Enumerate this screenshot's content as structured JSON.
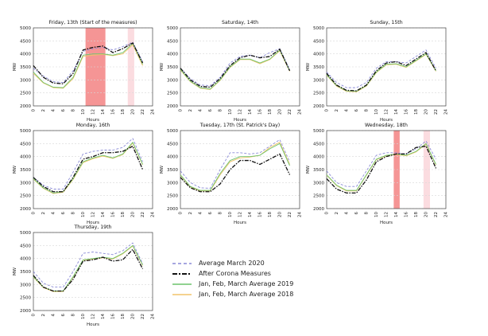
{
  "figure": {
    "ylabel": "MW",
    "xlabel": "Hours",
    "colors": {
      "avg2020": "#8a8ad6",
      "after": "#111111",
      "avg2019": "#6cc36c",
      "avg2018": "#f2c46a",
      "band_strong": "#f37b7b",
      "band_light": "#f9d0d6"
    },
    "legend": [
      {
        "key": "avg2020",
        "label": "Average March 2020",
        "style": "dashed"
      },
      {
        "key": "after",
        "label": "After Corona Measures",
        "style": "dashdot"
      },
      {
        "key": "avg2019",
        "label": "Jan, Feb, March Average 2019",
        "style": "solid"
      },
      {
        "key": "avg2018",
        "label": "Jan, Feb, March Average 2018",
        "style": "solid"
      }
    ]
  },
  "chart_data": [
    {
      "type": "line",
      "title": "Friday, 13th (Start of the measures)",
      "x": [
        0,
        2,
        4,
        6,
        8,
        10,
        12,
        14,
        16,
        18,
        20,
        22
      ],
      "ylim": [
        2000,
        5000
      ],
      "xticks": [
        "0",
        "2",
        "4",
        "6",
        "8",
        "10",
        "12",
        "14",
        "16",
        "18",
        "20",
        "22",
        "24"
      ],
      "yticks": [
        "2000",
        "2500",
        "3000",
        "3500",
        "4000",
        "4500",
        "5000"
      ],
      "bands": [
        {
          "x0": 10.5,
          "x1": 14.5,
          "kind": "strong"
        },
        {
          "x0": 19,
          "x1": 20.3,
          "kind": "light"
        }
      ],
      "series": [
        {
          "key": "avg2020",
          "values": [
            3450,
            3150,
            2930,
            2900,
            3350,
            4100,
            4200,
            4250,
            4150,
            4280,
            4450,
            3700
          ]
        },
        {
          "key": "after",
          "values": [
            3550,
            3100,
            2880,
            2850,
            3250,
            4150,
            4250,
            4300,
            4050,
            4200,
            4420,
            3650
          ]
        },
        {
          "key": "avg2019",
          "values": [
            3300,
            2900,
            2720,
            2700,
            3100,
            3950,
            4000,
            4000,
            3950,
            4050,
            4400,
            3600
          ]
        },
        {
          "key": "avg2018",
          "values": [
            3250,
            2880,
            2700,
            2680,
            3050,
            3900,
            3950,
            3980,
            3930,
            4000,
            4350,
            3550
          ]
        }
      ]
    },
    {
      "type": "line",
      "title": "Saturday, 14th",
      "x": [
        0,
        2,
        4,
        6,
        8,
        10,
        12,
        14,
        16,
        18,
        20,
        22
      ],
      "ylim": [
        2000,
        5000
      ],
      "xticks": [
        "0",
        "2",
        "4",
        "6",
        "8",
        "10",
        "12",
        "14",
        "16",
        "18",
        "20",
        "22",
        "24"
      ],
      "yticks": [
        "2000",
        "2500",
        "3000",
        "3500",
        "4000",
        "4500",
        "5000"
      ],
      "bands": [],
      "series": [
        {
          "key": "avg2020",
          "values": [
            3450,
            3050,
            2800,
            2780,
            3100,
            3650,
            3900,
            3950,
            3850,
            4050,
            4200,
            3400
          ]
        },
        {
          "key": "after",
          "values": [
            3450,
            3000,
            2750,
            2720,
            3050,
            3550,
            3850,
            3950,
            3850,
            3900,
            4180,
            3350
          ]
        },
        {
          "key": "avg2019",
          "values": [
            3400,
            2950,
            2700,
            2650,
            3000,
            3500,
            3800,
            3800,
            3650,
            3800,
            4150,
            3350
          ]
        },
        {
          "key": "avg2018",
          "values": [
            3380,
            2930,
            2680,
            2630,
            2980,
            3480,
            3780,
            3780,
            3620,
            3780,
            4120,
            3330
          ]
        }
      ]
    },
    {
      "type": "line",
      "title": "Sunday, 15th",
      "x": [
        0,
        2,
        4,
        6,
        8,
        10,
        12,
        14,
        16,
        18,
        20,
        22
      ],
      "ylim": [
        2000,
        5000
      ],
      "xticks": [
        "0",
        "2",
        "4",
        "6",
        "8",
        "10",
        "12",
        "14",
        "16",
        "18",
        "20",
        "22",
        "24"
      ],
      "yticks": [
        "2000",
        "2500",
        "3000",
        "3500",
        "4000",
        "4500",
        "5000"
      ],
      "bands": [],
      "series": [
        {
          "key": "avg2020",
          "values": [
            3300,
            2900,
            2700,
            2700,
            2900,
            3450,
            3700,
            3700,
            3650,
            3900,
            4150,
            3450
          ]
        },
        {
          "key": "after",
          "values": [
            3250,
            2800,
            2600,
            2580,
            2800,
            3350,
            3650,
            3700,
            3550,
            3800,
            4050,
            3350
          ]
        },
        {
          "key": "avg2019",
          "values": [
            3200,
            2780,
            2580,
            2560,
            2780,
            3300,
            3600,
            3620,
            3500,
            3750,
            4000,
            3350
          ]
        },
        {
          "key": "avg2018",
          "values": [
            3180,
            2760,
            2560,
            2540,
            2760,
            3280,
            3580,
            3600,
            3480,
            3730,
            3980,
            3330
          ]
        }
      ]
    },
    {
      "type": "line",
      "title": "Monday, 16th",
      "x": [
        0,
        2,
        4,
        6,
        8,
        10,
        12,
        14,
        16,
        18,
        20,
        22
      ],
      "ylim": [
        2000,
        5000
      ],
      "xticks": [
        "0",
        "2",
        "4",
        "6",
        "8",
        "10",
        "12",
        "14",
        "16",
        "18",
        "20",
        "22",
        "24"
      ],
      "yticks": [
        "2000",
        "2500",
        "3000",
        "3500",
        "4000",
        "4500",
        "5000"
      ],
      "bands": [],
      "series": [
        {
          "key": "avg2020",
          "values": [
            3200,
            2900,
            2750,
            2750,
            3400,
            4100,
            4200,
            4250,
            4250,
            4350,
            4700,
            3800
          ]
        },
        {
          "key": "after",
          "values": [
            3200,
            2850,
            2650,
            2650,
            3200,
            3900,
            4000,
            4150,
            4150,
            4200,
            4400,
            3500
          ]
        },
        {
          "key": "avg2019",
          "values": [
            3150,
            2800,
            2600,
            2650,
            3150,
            3800,
            3950,
            4050,
            3950,
            4100,
            4550,
            3700
          ]
        },
        {
          "key": "avg2018",
          "values": [
            3130,
            2780,
            2580,
            2630,
            3120,
            3770,
            3920,
            4020,
            3930,
            4080,
            4520,
            3680
          ]
        }
      ]
    },
    {
      "type": "line",
      "title": "Tuesday, 17th (St. Patrick's Day)",
      "x": [
        0,
        2,
        4,
        6,
        8,
        10,
        12,
        14,
        16,
        18,
        20,
        22
      ],
      "ylim": [
        2000,
        5000
      ],
      "xticks": [
        "0",
        "2",
        "4",
        "6",
        "8",
        "10",
        "12",
        "14",
        "16",
        "18",
        "20",
        "22",
        "24"
      ],
      "yticks": [
        "2000",
        "2500",
        "3000",
        "3500",
        "4000",
        "4500",
        "5000"
      ],
      "bands": [],
      "series": [
        {
          "key": "avg2020",
          "values": [
            3450,
            3000,
            2800,
            2780,
            3500,
            4150,
            4150,
            4100,
            4150,
            4400,
            4650,
            3800
          ]
        },
        {
          "key": "after",
          "values": [
            3200,
            2800,
            2650,
            2650,
            2950,
            3500,
            3850,
            3850,
            3700,
            3900,
            4100,
            3300
          ]
        },
        {
          "key": "avg2019",
          "values": [
            3300,
            2850,
            2700,
            2700,
            3350,
            3850,
            4000,
            4000,
            4050,
            4300,
            4500,
            3650
          ]
        },
        {
          "key": "avg2018",
          "values": [
            3280,
            2830,
            2680,
            2680,
            3300,
            3800,
            3950,
            3980,
            4050,
            4350,
            4550,
            3700
          ]
        }
      ]
    },
    {
      "type": "line",
      "title": "Wednesday, 18th",
      "x": [
        0,
        2,
        4,
        6,
        8,
        10,
        12,
        14,
        16,
        18,
        20,
        22
      ],
      "ylim": [
        2000,
        5000
      ],
      "xticks": [
        "0",
        "2",
        "4",
        "6",
        "8",
        "10",
        "12",
        "14",
        "16",
        "18",
        "20",
        "22",
        "24"
      ],
      "yticks": [
        "2000",
        "2500",
        "3000",
        "3500",
        "4000",
        "4500",
        "5000"
      ],
      "bands": [
        {
          "x0": 13.5,
          "x1": 14.7,
          "kind": "strong"
        },
        {
          "x0": 19.5,
          "x1": 20.8,
          "kind": "light"
        }
      ],
      "series": [
        {
          "key": "avg2020",
          "values": [
            3450,
            3000,
            2850,
            2850,
            3450,
            4050,
            4150,
            4150,
            4100,
            4300,
            4600,
            3900
          ]
        },
        {
          "key": "after",
          "values": [
            3150,
            2750,
            2600,
            2600,
            3100,
            3800,
            4000,
            4100,
            4100,
            4350,
            4400,
            3550
          ]
        },
        {
          "key": "avg2019",
          "values": [
            3300,
            2900,
            2700,
            2700,
            3300,
            3900,
            4050,
            4100,
            4050,
            4200,
            4500,
            3700
          ]
        },
        {
          "key": "avg2018",
          "values": [
            3280,
            2880,
            2680,
            2680,
            3280,
            3880,
            4030,
            4080,
            4030,
            4180,
            4480,
            3680
          ]
        }
      ]
    },
    {
      "type": "line",
      "title": "Thursday, 19th",
      "x": [
        0,
        2,
        4,
        6,
        8,
        10,
        12,
        14,
        16,
        18,
        20,
        22
      ],
      "ylim": [
        2000,
        5000
      ],
      "xticks": [
        "0",
        "2",
        "4",
        "6",
        "8",
        "10",
        "12",
        "14",
        "16",
        "18",
        "20",
        "22",
        "24"
      ],
      "yticks": [
        "2000",
        "2500",
        "3000",
        "3500",
        "4000",
        "4500",
        "5000"
      ],
      "bands": [],
      "series": [
        {
          "key": "avg2020",
          "values": [
            3500,
            3050,
            2900,
            2900,
            3500,
            4200,
            4250,
            4200,
            4150,
            4300,
            4600,
            3800
          ]
        },
        {
          "key": "after",
          "values": [
            3350,
            2900,
            2750,
            2750,
            3200,
            3900,
            3950,
            4050,
            3900,
            3950,
            4350,
            3600
          ]
        },
        {
          "key": "avg2019",
          "values": [
            3300,
            2900,
            2750,
            2750,
            3300,
            3950,
            4000,
            4050,
            4000,
            4200,
            4500,
            3750
          ]
        },
        {
          "key": "avg2018",
          "values": [
            3280,
            2880,
            2730,
            2730,
            3280,
            3930,
            3980,
            4030,
            3980,
            4180,
            4480,
            3730
          ]
        }
      ]
    }
  ]
}
